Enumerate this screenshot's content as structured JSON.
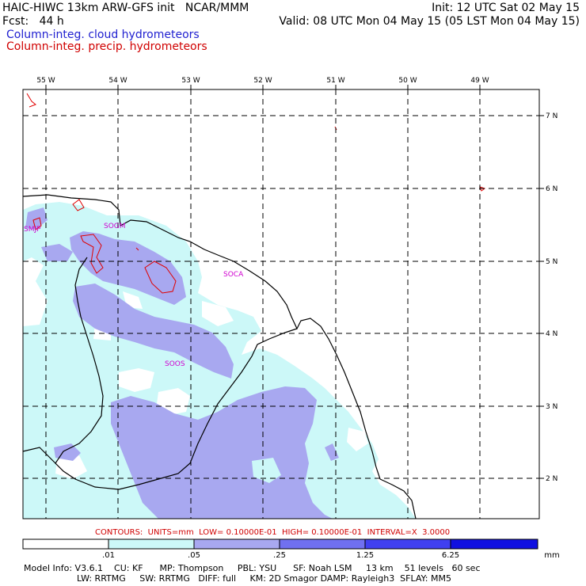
{
  "header": {
    "line1_left": "HAIC-HIWC 13km ARW-GFS init   NCAR/MMM",
    "line1_right": "Init: 12 UTC Sat 02 May 15",
    "line2_left": "Fcst:   44 h",
    "line2_right": "Valid: 08 UTC Mon 04 May 15 (05 LST Mon 04 May 15)",
    "field_cloud": "Column-integ. cloud hydrometeors",
    "field_precip": "Column-integ. precip. hydrometeors"
  },
  "map": {
    "lon_labels": [
      "55 W",
      "54 W",
      "53 W",
      "52 W",
      "51 W",
      "50 W",
      "49 W"
    ],
    "lat_labels": [
      "7 N",
      "6 N",
      "5 N",
      "4 N",
      "3 N",
      "2 N"
    ],
    "stations": [
      {
        "id": "SMJP",
        "label": "SMJP"
      },
      {
        "id": "SOGM",
        "label": "SOGM"
      },
      {
        "id": "SOCA",
        "label": "SOCA"
      },
      {
        "id": "SOOS",
        "label": "SOOS"
      }
    ],
    "colors": {
      "shade1": "#ccf8f8",
      "shade2": "#a8a8f0",
      "shade3": "#7070f0",
      "shade4": "#4040f0",
      "shade5": "#1010e0",
      "contour": "#e00000",
      "station": "#d000d0",
      "coast": "#000000"
    }
  },
  "contours_line": "CONTOURS:  UNITS=mm  LOW= 0.10000E-01  HIGH= 0.10000E-01  INTERVAL=X  3.0000",
  "colorbar": {
    "ticks": [
      ".01",
      ".05",
      ".25",
      "1.25",
      "6.25"
    ],
    "units": "mm"
  },
  "model_info": {
    "line1": "Model Info: V3.6.1    CU: KF      MP: Thompson     PBL: YSU      SF: Noah LSM     13 km    51 levels   60 sec",
    "line2": "LW: RRTMG     SW: RRTMG   DIFF: full     KM: 2D Smagor DAMP: Rayleigh3  SFLAY: MM5"
  }
}
